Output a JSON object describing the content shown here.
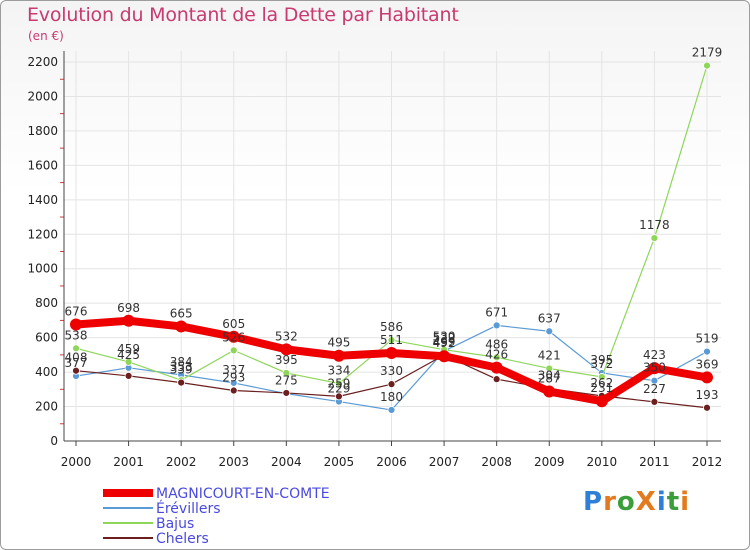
{
  "header": {
    "title": "Evolution du Montant de la Dette par Habitant",
    "unit": "(en €)"
  },
  "logo": {
    "text": "ProXiti",
    "letters": [
      "P",
      "r",
      "o",
      "X",
      "i",
      "t",
      "i"
    ],
    "colors": [
      "#2e7fd6",
      "#e37a1d",
      "#3a9f3a",
      "#e37a1d",
      "#2e7fd6",
      "#3a9f3a",
      "#e37a1d"
    ]
  },
  "chart_data": {
    "type": "line",
    "title": "Evolution du Montant de la Dette par Habitant",
    "ylabel": "(en €)",
    "xlabel": "",
    "ylim": [
      0,
      2200
    ],
    "yticks": [
      0,
      200,
      400,
      600,
      800,
      1000,
      1200,
      1400,
      1600,
      1800,
      2000,
      2200
    ],
    "x": [
      "2000",
      "2001",
      "2002",
      "2003",
      "2004",
      "2005",
      "2006",
      "2007",
      "2008",
      "2009",
      "2010",
      "2011",
      "2012"
    ],
    "grid": true,
    "legend_position": "bottom-left",
    "series": [
      {
        "name": "MAGNICOURT-EN-COMTE",
        "color": "#ee0000",
        "width": 8,
        "marker": 6,
        "values": [
          676,
          698,
          665,
          605,
          532,
          495,
          511,
          492,
          426,
          287,
          231,
          423,
          369
        ]
      },
      {
        "name": "Érévillers",
        "color": "#5b9bd5",
        "width": 1.2,
        "marker": 3.5,
        "values": [
          377,
          425,
          384,
          337,
          275,
          229,
          180,
          522,
          671,
          637,
          395,
          350,
          519
        ]
      },
      {
        "name": "Bajus",
        "color": "#8ed65a",
        "width": 1.2,
        "marker": 3.5,
        "values": [
          538,
          459,
          353,
          526,
          395,
          334,
          586,
          530,
          486,
          421,
          372,
          1178,
          2179
        ]
      },
      {
        "name": "Chelers",
        "color": "#6b1f1f",
        "width": 1.2,
        "marker": 3.5,
        "values": [
          408,
          378,
          339,
          293,
          279,
          259,
          330,
          499,
          359,
          304,
          262,
          227,
          193
        ]
      }
    ],
    "labels": [
      {
        "text": "676",
        "series": 0,
        "x": 0
      },
      {
        "text": "698",
        "series": 0,
        "x": 1
      },
      {
        "text": "665",
        "series": 0,
        "x": 2
      },
      {
        "text": "605",
        "series": 0,
        "x": 3
      },
      {
        "text": "532",
        "series": 0,
        "x": 4
      },
      {
        "text": "495",
        "series": 0,
        "x": 5
      },
      {
        "text": "511",
        "series": 0,
        "x": 6
      },
      {
        "text": "492",
        "series": 0,
        "x": 7
      },
      {
        "text": "426",
        "series": 0,
        "x": 8
      },
      {
        "text": "287",
        "series": 0,
        "x": 9
      },
      {
        "text": "231",
        "series": 0,
        "x": 10
      },
      {
        "text": "423",
        "series": 0,
        "x": 11
      },
      {
        "text": "369",
        "series": 0,
        "x": 12
      },
      {
        "text": "377",
        "series": 1,
        "x": 0
      },
      {
        "text": "425",
        "series": 1,
        "x": 1
      },
      {
        "text": "384",
        "series": 1,
        "x": 2
      },
      {
        "text": "337",
        "series": 1,
        "x": 3
      },
      {
        "text": "275",
        "series": 1,
        "x": 4
      },
      {
        "text": "229",
        "series": 1,
        "x": 5
      },
      {
        "text": "180",
        "series": 1,
        "x": 6
      },
      {
        "text": "522",
        "series": 1,
        "x": 7
      },
      {
        "text": "671",
        "series": 1,
        "x": 8
      },
      {
        "text": "637",
        "series": 1,
        "x": 9
      },
      {
        "text": "395",
        "series": 1,
        "x": 10
      },
      {
        "text": "350",
        "series": 1,
        "x": 11
      },
      {
        "text": "519",
        "series": 1,
        "x": 12
      },
      {
        "text": "538",
        "series": 2,
        "x": 0
      },
      {
        "text": "459",
        "series": 2,
        "x": 1
      },
      {
        "text": "353",
        "series": 2,
        "x": 2
      },
      {
        "text": "526",
        "series": 2,
        "x": 3
      },
      {
        "text": "395",
        "series": 2,
        "x": 4
      },
      {
        "text": "334",
        "series": 2,
        "x": 5
      },
      {
        "text": "586",
        "series": 2,
        "x": 6
      },
      {
        "text": "530",
        "series": 2,
        "x": 7
      },
      {
        "text": "486",
        "series": 2,
        "x": 8
      },
      {
        "text": "421",
        "series": 2,
        "x": 9
      },
      {
        "text": "372",
        "series": 2,
        "x": 10
      },
      {
        "text": "1178",
        "series": 2,
        "x": 11
      },
      {
        "text": "2179",
        "series": 2,
        "x": 12
      },
      {
        "text": "408",
        "series": 3,
        "x": 0
      },
      {
        "text": "339",
        "series": 3,
        "x": 2
      },
      {
        "text": "293",
        "series": 3,
        "x": 3
      },
      {
        "text": "259",
        "series": 3,
        "x": 5
      },
      {
        "text": "330",
        "series": 3,
        "x": 6
      },
      {
        "text": "499",
        "series": 3,
        "x": 7
      },
      {
        "text": "304",
        "series": 3,
        "x": 9
      },
      {
        "text": "262",
        "series": 3,
        "x": 10
      },
      {
        "text": "227",
        "series": 3,
        "x": 11
      },
      {
        "text": "193",
        "series": 3,
        "x": 12
      }
    ]
  }
}
